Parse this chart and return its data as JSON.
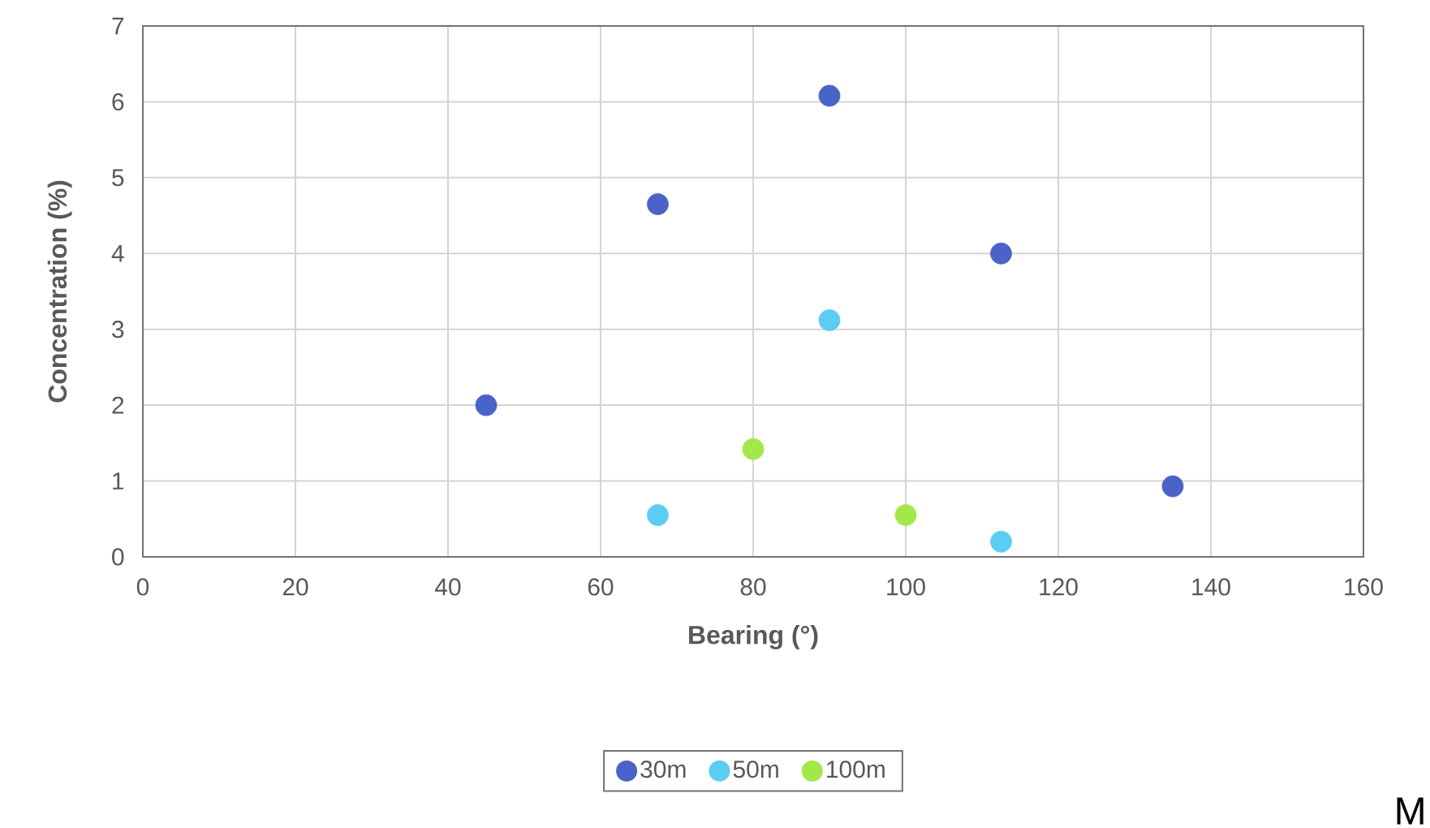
{
  "chart_data": {
    "type": "scatter",
    "xlabel": "Bearing (°)",
    "ylabel": "Concentration (%)",
    "xlim": [
      0,
      160
    ],
    "xticks": [
      0,
      20,
      40,
      60,
      80,
      100,
      120,
      140,
      160
    ],
    "ylim": [
      0,
      7
    ],
    "yticks": [
      0,
      1,
      2,
      3,
      4,
      5,
      6,
      7
    ],
    "grid": true,
    "legend": "bottom",
    "marker": "circle",
    "annotations": [
      "M"
    ],
    "series": [
      {
        "name": "30m",
        "color": "#4a63c8",
        "x": [
          45,
          67.5,
          90,
          112.5,
          135
        ],
        "values": [
          2.0,
          4.65,
          6.08,
          4.0,
          0.93
        ]
      },
      {
        "name": "50m",
        "color": "#5bcdf2",
        "x": [
          67.5,
          90,
          112.5
        ],
        "values": [
          0.55,
          3.12,
          0.2
        ]
      },
      {
        "name": "100m",
        "color": "#a3e84a",
        "x": [
          80,
          100
        ],
        "values": [
          1.42,
          0.55
        ]
      }
    ]
  }
}
